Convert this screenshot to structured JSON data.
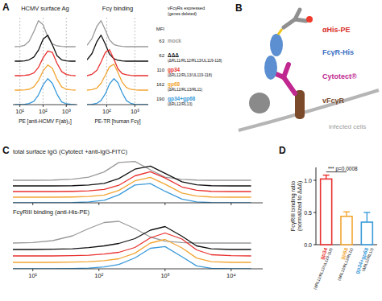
{
  "panel_labels": [
    "A",
    "B",
    "C",
    "D"
  ],
  "diagram": {
    "labels": [
      "αHis-PE",
      "FcγR-His",
      "Cytotect®",
      "vFcγR",
      "infected cells"
    ]
  },
  "chart_data": [
    {
      "type": "line",
      "title": "HCMV surface Ag",
      "x_label": "PE [anti-HCMV F(ab)₂]",
      "log": "x",
      "xlim": [
        5,
        3000
      ],
      "xticks": [
        {
          "value": 10,
          "label": "10¹"
        },
        {
          "value": 100,
          "label": "10²"
        },
        {
          "value": 1000,
          "label": "10³"
        }
      ],
      "ylim": [
        0,
        100
      ],
      "tick_labels": "x",
      "grid": true,
      "x": [
        6,
        10,
        16,
        25,
        40,
        63,
        100,
        160,
        250,
        400,
        630,
        1000,
        1600,
        2500
      ],
      "series": [
        {
          "color": "#9a9a9a",
          "values": [
            0,
            1,
            5,
            20,
            55,
            95,
            80,
            35,
            10,
            3,
            1,
            0,
            0,
            0
          ]
        },
        {
          "color": "#111111",
          "values": [
            0,
            0,
            1,
            5,
            15,
            40,
            80,
            95,
            60,
            20,
            5,
            1,
            0,
            0
          ]
        },
        {
          "color": "#e8312f",
          "values": [
            0,
            0,
            1,
            3,
            10,
            30,
            65,
            90,
            85,
            45,
            15,
            4,
            1,
            0
          ]
        },
        {
          "color": "#f2a533",
          "values": [
            0,
            0,
            1,
            3,
            12,
            35,
            70,
            92,
            80,
            40,
            12,
            3,
            1,
            0
          ]
        },
        {
          "color": "#3a9ad9",
          "values": [
            0,
            0,
            1,
            4,
            12,
            35,
            72,
            95,
            78,
            38,
            10,
            3,
            1,
            0
          ]
        }
      ]
    },
    {
      "type": "line",
      "title": "Fcγ binding",
      "x_label": "PE-TR [human Fcγ]",
      "log": "x",
      "xlim": [
        20,
        3000
      ],
      "xticks": [
        {
          "value": 100,
          "label": "10²"
        },
        {
          "value": 1000,
          "label": "10³"
        }
      ],
      "ylim": [
        0,
        100
      ],
      "tick_labels": "x",
      "grid": true,
      "legend": "right",
      "legend_title": "vFcγRs expressed",
      "legend_subtitle": "(genes deleted)",
      "mfi_label": "MFI",
      "x": [
        20,
        30,
        45,
        63,
        90,
        125,
        180,
        250,
        350,
        500,
        700,
        1000,
        1400,
        2000,
        3000
      ],
      "series": [
        {
          "name": "mock",
          "mfi": 63,
          "color": "#9a9a9a",
          "values": [
            5,
            30,
            75,
            95,
            60,
            25,
            8,
            3,
            1,
            0,
            0,
            0,
            0,
            0,
            0
          ]
        },
        {
          "name": "ΔΔΔ",
          "mfi": 62,
          "genes_deleted": "(ΔRL11/RL12/RL13/UL119-118)",
          "color": "#111111",
          "values": [
            5,
            28,
            72,
            95,
            62,
            26,
            9,
            3,
            1,
            0,
            0,
            0,
            0,
            0,
            0
          ]
        },
        {
          "name": "gp34",
          "mfi": 110,
          "genes_deleted": "(ΔRL12/RL13/UL119-118)",
          "color": "#e8312f",
          "values": [
            0,
            5,
            20,
            50,
            85,
            95,
            60,
            25,
            8,
            3,
            1,
            0,
            0,
            0,
            0
          ]
        },
        {
          "name": "gp68",
          "mfi": 162,
          "genes_deleted": "(ΔRL12/RL13/RL11)",
          "color": "#f2a533",
          "values": [
            0,
            2,
            8,
            25,
            55,
            85,
            95,
            65,
            30,
            10,
            3,
            1,
            0,
            0,
            0
          ]
        },
        {
          "name": "gp34+gp68",
          "mfi": 190,
          "genes_deleted": "(ΔRL12/RL13)",
          "color": "#3a9ad9",
          "values": [
            0,
            1,
            5,
            15,
            40,
            75,
            95,
            80,
            45,
            15,
            5,
            1,
            0,
            0,
            0
          ]
        }
      ]
    },
    {
      "type": "line",
      "title": "total surface IgG (Cytotect +anti-IgG-FITC)",
      "log": "x",
      "xlim": [
        5,
        30000
      ],
      "xticks": [
        10,
        100,
        1000,
        10000
      ],
      "ylim": [
        0,
        100
      ],
      "tick_labels": false,
      "x": [
        5,
        10,
        20,
        40,
        70,
        120,
        200,
        350,
        600,
        1000,
        1800,
        3000,
        5000,
        10000,
        20000
      ],
      "series": [
        {
          "color": "#9a9a9a",
          "values": [
            0,
            0,
            1,
            5,
            15,
            40,
            85,
            90,
            50,
            15,
            4,
            1,
            0,
            0,
            0
          ]
        },
        {
          "color": "#111111",
          "values": [
            0,
            0,
            0,
            1,
            4,
            12,
            35,
            80,
            95,
            60,
            20,
            5,
            1,
            0,
            0
          ]
        },
        {
          "color": "#e8312f",
          "values": [
            0,
            0,
            0,
            1,
            3,
            10,
            30,
            75,
            95,
            65,
            22,
            6,
            1,
            0,
            0
          ]
        },
        {
          "color": "#f2a533",
          "values": [
            0,
            0,
            0,
            1,
            3,
            10,
            32,
            78,
            95,
            62,
            20,
            5,
            1,
            0,
            0
          ]
        },
        {
          "color": "#3a9ad9",
          "values": [
            0,
            0,
            0,
            1,
            4,
            12,
            38,
            85,
            92,
            55,
            18,
            4,
            1,
            0,
            0
          ]
        }
      ]
    },
    {
      "type": "line",
      "title": "FcγRIII binding (anti-His-PE)",
      "log": "x",
      "xlim": [
        5,
        30000
      ],
      "xticks": [
        {
          "value": 10,
          "label": "10¹"
        },
        {
          "value": 100,
          "label": "10²"
        },
        {
          "value": 1000,
          "label": "10³"
        },
        {
          "value": 10000,
          "label": "10⁴"
        }
      ],
      "ylim": [
        0,
        100
      ],
      "tick_labels": "x",
      "x": [
        5,
        10,
        20,
        40,
        70,
        120,
        200,
        350,
        600,
        1000,
        1800,
        3000,
        5000,
        10000,
        20000
      ],
      "series": [
        {
          "color": "#9a9a9a",
          "values": [
            0,
            2,
            10,
            30,
            60,
            85,
            90,
            60,
            25,
            8,
            2,
            0,
            0,
            0,
            0
          ]
        },
        {
          "color": "#111111",
          "values": [
            0,
            0,
            1,
            3,
            8,
            15,
            25,
            45,
            80,
            95,
            55,
            15,
            3,
            0,
            0
          ]
        },
        {
          "color": "#e8312f",
          "values": [
            0,
            0,
            0,
            1,
            3,
            8,
            15,
            35,
            75,
            95,
            70,
            25,
            5,
            1,
            0
          ]
        },
        {
          "color": "#f2a533",
          "values": [
            0,
            0,
            0,
            1,
            3,
            7,
            15,
            38,
            80,
            95,
            60,
            18,
            3,
            0,
            0
          ]
        },
        {
          "color": "#3a9ad9",
          "values": [
            0,
            0,
            0,
            1,
            3,
            8,
            18,
            45,
            85,
            92,
            50,
            12,
            2,
            0,
            0
          ]
        }
      ]
    },
    {
      "type": "bar",
      "y_label": [
        "FcγRIII binding ratio",
        "(normalized to ΔΔΔ)"
      ],
      "categories": [
        "gp34",
        "gp68",
        "gp34+gp68"
      ],
      "category_notes": [
        "(ΔRL12/RL13/UL119-118)",
        "(ΔRL12/RL13/RL11)",
        "(ΔRL12/RL13)"
      ],
      "values": [
        1.02,
        0.44,
        0.35
      ],
      "errors": [
        0.06,
        0.07,
        0.15
      ],
      "colors": [
        "#e8312f",
        "#f2a533",
        "#3a9ad9"
      ],
      "ylim": [
        0,
        1.2
      ],
      "yticks": [
        {
          "value": 0,
          "label": "0.0"
        },
        0.5,
        {
          "value": 1,
          "label": "1.0"
        }
      ],
      "annotation": "*** p=0.0008"
    }
  ]
}
